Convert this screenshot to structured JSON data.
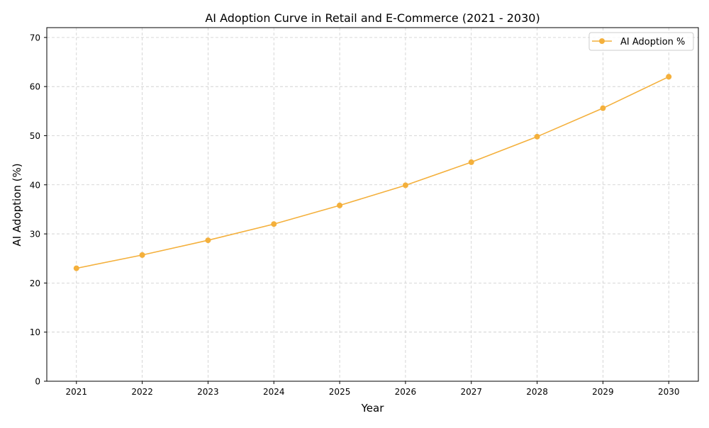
{
  "chart_data": {
    "type": "line",
    "title": "AI Adoption Curve in Retail and E-Commerce (2021 - 2030)",
    "xlabel": "Year",
    "ylabel": "AI Adoption (%)",
    "x": [
      2021,
      2022,
      2023,
      2024,
      2025,
      2026,
      2027,
      2028,
      2029,
      2030
    ],
    "series": [
      {
        "name": "AI Adoption %",
        "color": "#f4b03c",
        "marker": "circle",
        "values": [
          23.0,
          25.7,
          28.7,
          32.0,
          35.8,
          39.9,
          44.6,
          49.8,
          55.6,
          62.0
        ]
      }
    ],
    "xticks": [
      "2021",
      "2022",
      "2023",
      "2024",
      "2025",
      "2026",
      "2027",
      "2028",
      "2029",
      "2030"
    ],
    "yticks": [
      "0",
      "10",
      "20",
      "30",
      "40",
      "50",
      "60",
      "70"
    ],
    "xlim": [
      2020.55,
      2030.45
    ],
    "ylim": [
      0,
      72
    ],
    "grid": true,
    "grid_style": "dashed",
    "legend_position": "top-right"
  }
}
